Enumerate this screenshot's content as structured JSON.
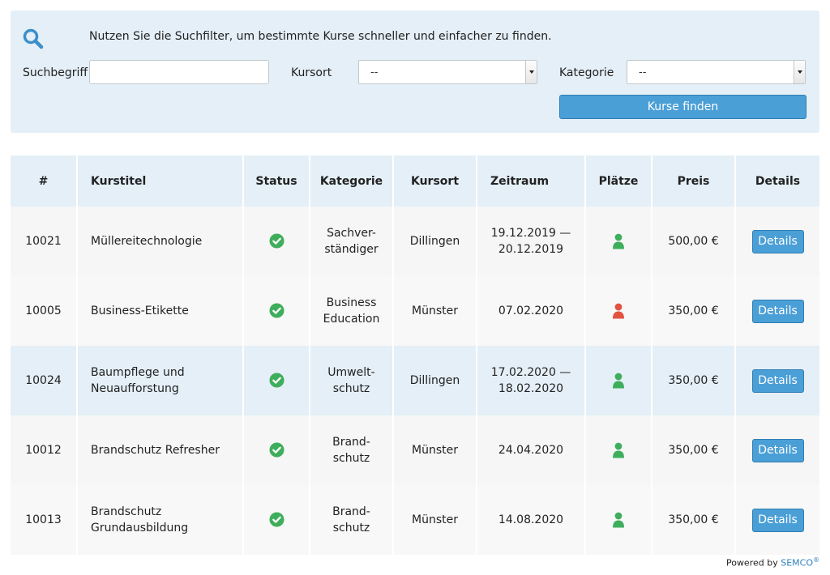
{
  "filter": {
    "intro": "Nutzen Sie die Suchfilter, um bestimmte Kurse schneller und einfacher zu finden.",
    "search_label": "Suchbegriff",
    "search_value": "",
    "location_label": "Kursort",
    "location_value": "--",
    "category_label": "Kategorie",
    "category_value": "--",
    "find_button": "Kurse finden"
  },
  "table": {
    "headers": {
      "number": "#",
      "title": "Kurstitel",
      "status": "Status",
      "category": "Kategorie",
      "location": "Kursort",
      "period": "Zeitraum",
      "seats": "Plätze",
      "price": "Preis",
      "details": "Details"
    },
    "rows": [
      {
        "number": "10021",
        "title": [
          "Müllereitechnologie"
        ],
        "status_icon": "check-circle-icon",
        "category": [
          "Sachver-",
          "ständiger"
        ],
        "location": "Dillingen",
        "period": [
          "19.12.2019 —",
          "20.12.2019"
        ],
        "seats_icon": "person-icon",
        "seats_color": "#3fae5c",
        "price": "500,00 €",
        "details": "Details"
      },
      {
        "number": "10005",
        "title": [
          "Business-Etikette"
        ],
        "status_icon": "check-circle-icon",
        "category": [
          "Business",
          "Education"
        ],
        "location": "Münster",
        "period": [
          "07.02.2020"
        ],
        "seats_icon": "person-icon",
        "seats_color": "#e2533f",
        "price": "350,00 €",
        "details": "Details"
      },
      {
        "number": "10024",
        "title": [
          "Baumpflege und",
          "Neuaufforstung"
        ],
        "status_icon": "check-circle-icon",
        "category": [
          "Umwelt-",
          "schutz"
        ],
        "location": "Dillingen",
        "period": [
          "17.02.2020 —",
          "18.02.2020"
        ],
        "seats_icon": "person-icon",
        "seats_color": "#3fae5c",
        "price": "350,00 €",
        "details": "Details"
      },
      {
        "number": "10012",
        "title": [
          "Brandschutz Refresher"
        ],
        "status_icon": "check-circle-icon",
        "category": [
          "Brand-",
          "schutz"
        ],
        "location": "Münster",
        "period": [
          "24.04.2020"
        ],
        "seats_icon": "person-icon",
        "seats_color": "#3fae5c",
        "price": "350,00 €",
        "details": "Details"
      },
      {
        "number": "10013",
        "title": [
          "Brandschutz",
          "Grundausbildung"
        ],
        "status_icon": "check-circle-icon",
        "category": [
          "Brand-",
          "schutz"
        ],
        "location": "Münster",
        "period": [
          "14.08.2020"
        ],
        "seats_icon": "person-icon",
        "seats_color": "#3fae5c",
        "price": "350,00 €",
        "details": "Details"
      }
    ]
  },
  "colors": {
    "accent": "#4a9fd6",
    "panel_bg": "#e4eff7",
    "status_ok": "#3fae5c",
    "seats_full": "#e2533f"
  },
  "footer": {
    "powered_by": "Powered by",
    "brand": "SEMCO",
    "mark": "®"
  }
}
